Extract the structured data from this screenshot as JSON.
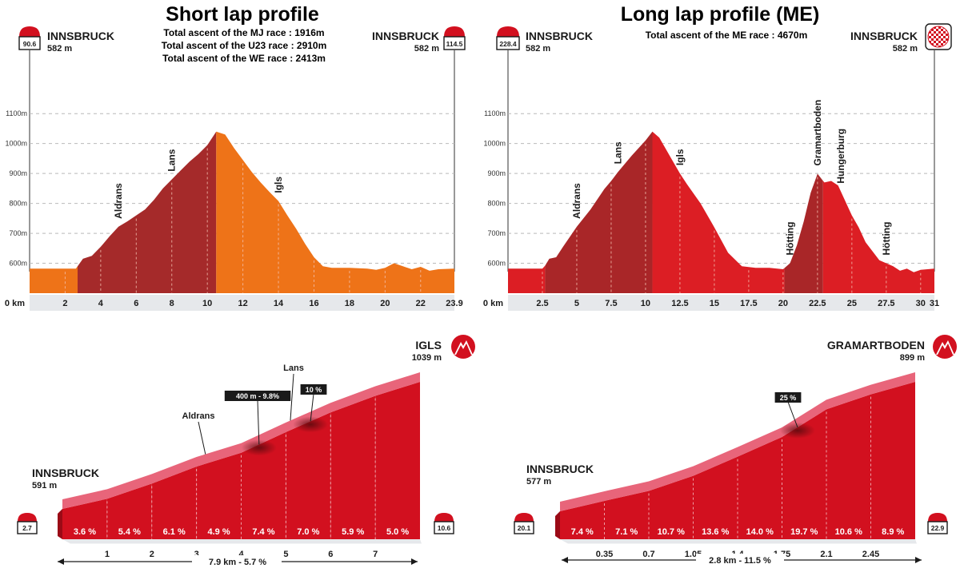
{
  "short_lap": {
    "title": "Short lap profile",
    "ascent_lines": [
      "Total ascent of the MJ race : 1916m",
      "Total ascent of the U23 race : 2910m",
      "Total ascent of the WE race : 2413m"
    ],
    "start": {
      "name": "INNSBRUCK",
      "alt": "582 m",
      "km_badge": "90.6"
    },
    "finish": {
      "name": "INNSBRUCK",
      "alt": "582 m",
      "km_badge": "114.5"
    }
  },
  "long_lap": {
    "title": "Long lap profile (ME)",
    "ascent_lines": [
      "Total ascent of the ME race : 4670m"
    ],
    "start": {
      "name": "INNSBRUCK",
      "alt": "582 m",
      "km_badge": "228.4"
    },
    "finish": {
      "name": "INNSBRUCK",
      "alt": "582 m",
      "finish_icon": "checkered-flag-icon"
    }
  },
  "short_climb": {
    "start": {
      "name": "INNSBRUCK",
      "alt": "591 m",
      "km_badge": "2.7"
    },
    "summit": {
      "name": "IGLS",
      "alt": "1039 m",
      "icon": "mountain-icon"
    },
    "end_km_badge": "10.6",
    "summary": "7.9 km - 5.7 %",
    "callouts": [
      {
        "text": "400 m - 9.8%"
      },
      {
        "text": "10 %"
      }
    ],
    "places": [
      "Aldrans",
      "Lans"
    ]
  },
  "long_climb": {
    "start": {
      "name": "INNSBRUCK",
      "alt": "577 m",
      "km_badge": "20.1"
    },
    "summit": {
      "name": "GRAMARTBODEN",
      "alt": "899 m",
      "icon": "mountain-icon"
    },
    "end_km_badge": "22.9",
    "summary": "2.8 km - 11.5 %",
    "callouts": [
      {
        "text": "25 %"
      }
    ]
  },
  "colors": {
    "climb_dark": "#a52a2a",
    "descent_orange": "#ee7318",
    "flat_orange": "#ee7318",
    "long_red": "#dc1e24",
    "long_dark": "#a92628",
    "climb3d_front": "#d2101f",
    "climb3d_top": "#e8657a",
    "axis_band": "#e6e8eb"
  },
  "chart_data": [
    {
      "type": "area",
      "title": "Short lap profile",
      "xlabel": "",
      "ylabel": "",
      "xlim": [
        0,
        23.9
      ],
      "ylim": [
        500,
        1170
      ],
      "x_ticks": [
        "0 km",
        "2",
        "4",
        "6",
        "8",
        "10",
        "12",
        "14",
        "16",
        "18",
        "20",
        "22",
        "23.9"
      ],
      "y_ticks": [
        "600m",
        "700m",
        "800m",
        "900m",
        "1000m",
        "1100m"
      ],
      "x": [
        0,
        2.6,
        2.7,
        3.0,
        3.5,
        4.0,
        4.5,
        5.0,
        5.5,
        6.0,
        6.5,
        7.0,
        7.5,
        8.0,
        8.5,
        9.0,
        9.5,
        10.0,
        10.5,
        11.0,
        11.5,
        12.0,
        12.5,
        13.0,
        13.5,
        14.0,
        14.5,
        15.0,
        15.5,
        16.0,
        16.5,
        17.0,
        18.0,
        19.0,
        19.5,
        20.0,
        20.5,
        21.0,
        21.5,
        22.0,
        22.5,
        23.0,
        23.9
      ],
      "y": [
        582,
        582,
        590,
        615,
        625,
        655,
        690,
        722,
        740,
        760,
        780,
        812,
        850,
        880,
        910,
        940,
        965,
        995,
        1040,
        1030,
        985,
        945,
        905,
        870,
        838,
        808,
        760,
        715,
        665,
        620,
        590,
        585,
        585,
        582,
        578,
        585,
        600,
        590,
        580,
        588,
        575,
        580,
        582
      ],
      "segments": [
        {
          "from": 0,
          "to": 2.7,
          "style": "flat"
        },
        {
          "from": 2.7,
          "to": 10.5,
          "style": "climb"
        },
        {
          "from": 10.5,
          "to": 23.9,
          "style": "descent"
        }
      ],
      "annotations": [
        {
          "x": 5.0,
          "label": "Aldrans"
        },
        {
          "x": 8.0,
          "label": "Lans"
        },
        {
          "x": 14.0,
          "label": "Igls"
        }
      ]
    },
    {
      "type": "area",
      "title": "Long lap profile (ME)",
      "xlabel": "",
      "ylabel": "",
      "xlim": [
        0,
        31
      ],
      "ylim": [
        500,
        1170
      ],
      "x_ticks": [
        "0 km",
        "2.5",
        "5",
        "7.5",
        "10",
        "12.5",
        "15",
        "17.5",
        "20",
        "22.5",
        "25",
        "27.5",
        "30",
        "31"
      ],
      "y_ticks": [
        "600m",
        "700m",
        "800m",
        "900m",
        "1000m",
        "1100m"
      ],
      "x": [
        0,
        2.5,
        2.7,
        3.0,
        3.5,
        4.0,
        5.0,
        6.0,
        7.0,
        7.5,
        8.0,
        9.0,
        10.0,
        10.5,
        11.0,
        11.5,
        12.0,
        12.5,
        13.0,
        14.0,
        15.0,
        16.0,
        17.0,
        18.0,
        19.0,
        20.0,
        20.5,
        21.0,
        21.5,
        22.0,
        22.5,
        23.0,
        23.5,
        24.0,
        24.5,
        25.0,
        25.5,
        26.0,
        27.0,
        28.0,
        28.5,
        29.0,
        29.5,
        30.0,
        30.5,
        31.0
      ],
      "y": [
        582,
        582,
        592,
        615,
        620,
        655,
        722,
        780,
        848,
        875,
        905,
        960,
        1010,
        1040,
        1020,
        980,
        940,
        900,
        865,
        800,
        720,
        635,
        590,
        585,
        585,
        580,
        600,
        660,
        740,
        835,
        899,
        870,
        875,
        860,
        810,
        760,
        720,
        670,
        610,
        590,
        575,
        582,
        570,
        578,
        580,
        582
      ],
      "segments": [
        {
          "from": 0,
          "to": 2.7,
          "style": "flat"
        },
        {
          "from": 2.7,
          "to": 10.5,
          "style": "climb"
        },
        {
          "from": 10.5,
          "to": 20.1,
          "style": "descent"
        },
        {
          "from": 20.1,
          "to": 22.9,
          "style": "climb"
        },
        {
          "from": 22.9,
          "to": 31,
          "style": "descent"
        }
      ],
      "annotations": [
        {
          "x": 5.0,
          "label": "Aldrans"
        },
        {
          "x": 8.0,
          "label": "Lans"
        },
        {
          "x": 12.5,
          "label": "Igls"
        },
        {
          "x": 20.5,
          "label": "Hötting"
        },
        {
          "x": 22.5,
          "label": "Gramartboden"
        },
        {
          "x": 24.2,
          "label": "Hungerburg"
        },
        {
          "x": 27.5,
          "label": "Hötting"
        }
      ]
    },
    {
      "type": "bar",
      "title": "",
      "xlabel": "",
      "ylabel": "",
      "categories": [
        "0-1",
        "1-2",
        "2-3",
        "3-4",
        "4-5",
        "5-6",
        "6-7",
        "7-7.9"
      ],
      "x_ticks": [
        "1",
        "2",
        "3",
        "4",
        "5",
        "6",
        "7"
      ],
      "values": [
        3.6,
        5.4,
        6.1,
        4.9,
        7.4,
        7.0,
        5.9,
        5.0
      ],
      "value_labels": [
        "3.6 %",
        "5.4 %",
        "6.1 %",
        "4.9 %",
        "7.4 %",
        "7.0 %",
        "5.9 %",
        "5.0 %"
      ],
      "elevation_start": 591,
      "elevation_end": 1039
    },
    {
      "type": "bar",
      "title": "",
      "xlabel": "",
      "ylabel": "",
      "categories": [
        "0-0.35",
        "0.35-0.7",
        "0.7-1.05",
        "1.05-1.4",
        "1.4-1.75",
        "1.75-2.1",
        "2.1-2.45",
        "2.45-2.8"
      ],
      "x_ticks": [
        "0.35",
        "0.7",
        "1.05",
        "1.4",
        "1.75",
        "2.1",
        "2.45"
      ],
      "values": [
        7.4,
        7.1,
        10.7,
        13.6,
        14.0,
        19.7,
        10.6,
        8.9
      ],
      "value_labels": [
        "7.4 %",
        "7.1 %",
        "10.7 %",
        "13.6 %",
        "14.0 %",
        "19.7 %",
        "10.6 %",
        "8.9 %"
      ],
      "elevation_start": 577,
      "elevation_end": 899
    }
  ]
}
